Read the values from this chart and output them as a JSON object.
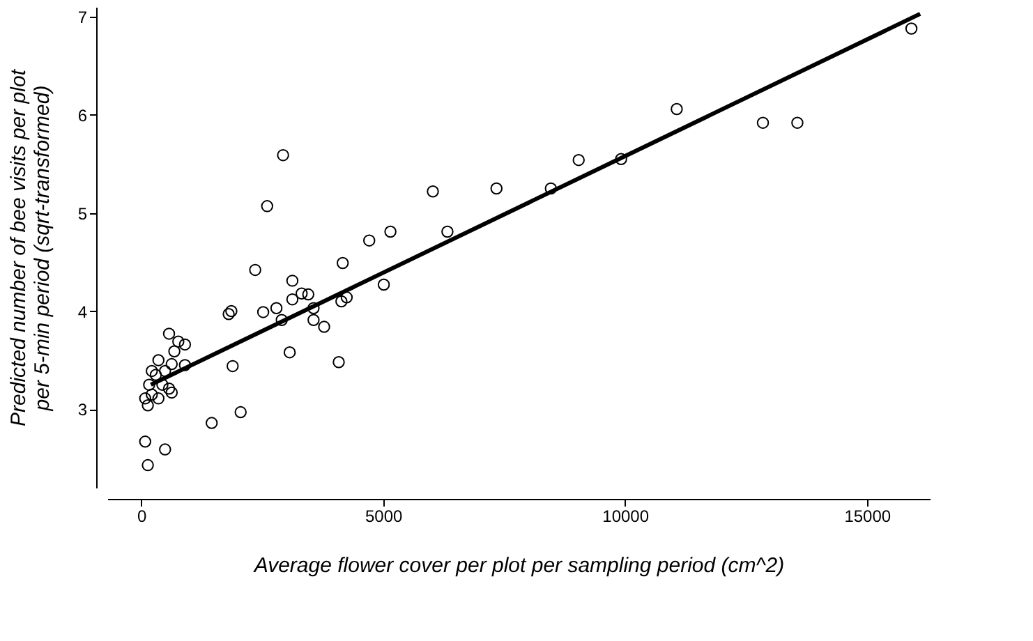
{
  "chart_data": {
    "type": "scatter",
    "xlabel": "Average flower cover per plot per sampling period (cm^2)",
    "ylabel": "Predicted number of bee visits per plot\nper 5-min period (sqrt-transformed)",
    "xlim": [
      -700,
      16300
    ],
    "ylim": [
      2.2,
      7.1
    ],
    "xticks": [
      0,
      5000,
      10000,
      15000
    ],
    "yticks": [
      3,
      4,
      5,
      6,
      7
    ],
    "grid": false,
    "series": [
      {
        "marker": "circle",
        "color": "#000000",
        "x": [
          137,
          82,
          493,
          137,
          82,
          219,
          164,
          219,
          356,
          493,
          630,
          438,
          575,
          630,
          301,
          685,
          767,
          904,
          575,
          904,
          356,
          1457,
          2055,
          1890,
          1808,
          1863,
          2356,
          2603,
          2932,
          2521,
          2795,
          2904,
          3124,
          3124,
          3316,
          3453,
          3562,
          3562,
          3781,
          3069,
          4083,
          4165,
          4138,
          4247,
          4713,
          5151,
          5014,
          6028,
          6329,
          7343,
          8467,
          9042,
          9919,
          11069,
          12850,
          13562,
          15919
        ],
        "values": [
          2.43,
          2.67,
          2.59,
          3.04,
          3.11,
          3.15,
          3.25,
          3.39,
          3.5,
          3.39,
          3.46,
          3.25,
          3.21,
          3.17,
          3.35,
          3.59,
          3.69,
          3.66,
          3.77,
          3.45,
          3.11,
          2.86,
          2.97,
          3.44,
          3.97,
          4.0,
          4.42,
          5.07,
          5.59,
          3.99,
          4.03,
          3.91,
          4.31,
          4.12,
          4.18,
          4.17,
          4.03,
          3.91,
          3.84,
          3.58,
          3.48,
          4.49,
          4.1,
          4.14,
          4.72,
          4.81,
          4.27,
          5.22,
          4.81,
          5.25,
          5.25,
          5.54,
          5.55,
          6.06,
          5.92,
          5.92,
          6.88
        ]
      },
      {
        "type": "line",
        "line_style": "solid",
        "color": "#000000",
        "x": [
          200,
          16100
        ],
        "values": [
          3.25,
          7.03
        ]
      }
    ]
  }
}
